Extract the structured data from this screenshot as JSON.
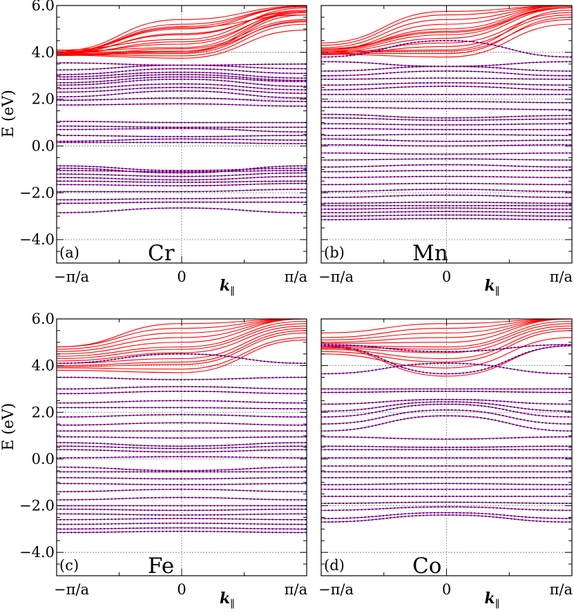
{
  "figure": {
    "ylabel": "E (eV)",
    "xlabel_symbol": "k",
    "xlabel_subscript": "∥",
    "xtick_labels": [
      "−π/a",
      "0",
      "π/a"
    ],
    "ytick_labels": [
      "6.0",
      "4.0",
      "2.0",
      "0.0",
      "−2.0",
      "−4.0"
    ]
  },
  "colors": {
    "band_line": "#ff0000",
    "band_dots": "#0000ff",
    "grid": "#777777",
    "axes": "#000000"
  },
  "chart_data": [
    {
      "type": "line",
      "panel": "(a)",
      "element": "Cr",
      "xlim": [
        -1,
        1
      ],
      "ylim": [
        -5.0,
        6.0
      ],
      "x_unit": "π/a",
      "grid": "dashed at E = -4, -2, 0, 2, 4 and at k = 0",
      "series": [
        {
          "name": "red",
          "style": "line",
          "bands": [
            [
              4.0,
              5.0,
              5.95
            ],
            [
              4.0,
              5.1,
              5.95
            ],
            [
              4.0,
              5.2,
              5.95
            ],
            [
              4.05,
              5.4,
              5.98
            ],
            [
              4.0,
              5.05,
              5.6
            ],
            [
              3.95,
              4.45,
              5.7
            ],
            [
              3.95,
              4.8,
              5.75
            ],
            [
              4.0,
              4.75,
              5.8
            ],
            [
              4.1,
              4.55,
              5.9
            ],
            [
              4.0,
              4.35,
              5.75
            ],
            [
              4.05,
              4.2,
              5.7
            ],
            [
              4.0,
              4.05,
              5.7
            ],
            [
              3.95,
              4.0,
              5.6
            ],
            [
              3.92,
              3.95,
              5.35
            ],
            [
              3.9,
              3.85,
              5.2
            ],
            [
              3.88,
              3.75,
              4.95
            ],
            [
              3.87,
              4.15,
              5.4
            ],
            [
              3.86,
              4.05,
              5.3
            ]
          ]
        },
        {
          "name": "blue",
          "style": "dotted",
          "bands": [
            [
              3.55,
              3.45,
              3.5
            ],
            [
              3.25,
              3.45,
              3.3
            ],
            [
              3.05,
              3.3,
              3.1
            ],
            [
              2.95,
              3.15,
              2.9
            ],
            [
              2.85,
              3.05,
              2.8
            ],
            [
              2.7,
              2.95,
              2.75
            ],
            [
              2.6,
              2.85,
              2.55
            ],
            [
              2.45,
              2.65,
              2.4
            ],
            [
              2.3,
              2.5,
              2.25
            ],
            [
              2.1,
              2.35,
              2.05
            ],
            [
              1.95,
              2.05,
              1.9
            ],
            [
              1.75,
              1.8,
              1.7
            ],
            [
              1.05,
              1.0,
              1.0
            ],
            [
              0.85,
              0.8,
              0.8
            ],
            [
              0.7,
              0.75,
              0.6
            ],
            [
              0.45,
              0.4,
              0.45
            ],
            [
              0.2,
              0.3,
              0.25
            ],
            [
              0.15,
              0.15,
              0.1
            ],
            [
              -0.85,
              -1.05,
              -0.95
            ],
            [
              -0.95,
              -1.15,
              -0.85
            ],
            [
              -1.05,
              -1.1,
              -1.05
            ],
            [
              -1.2,
              -1.3,
              -1.15
            ],
            [
              -1.35,
              -1.45,
              -1.3
            ],
            [
              -1.5,
              -1.55,
              -1.5
            ],
            [
              -1.65,
              -1.7,
              -1.6
            ],
            [
              -1.95,
              -1.95,
              -1.85
            ],
            [
              -2.3,
              -2.25,
              -2.2
            ],
            [
              -2.45,
              -2.4,
              -2.4
            ],
            [
              -2.85,
              -2.65,
              -2.85
            ]
          ]
        }
      ]
    },
    {
      "type": "line",
      "panel": "(b)",
      "element": "Mn",
      "xlim": [
        -1,
        1
      ],
      "ylim": [
        -5.0,
        6.0
      ],
      "x_unit": "π/a",
      "grid": "dashed at E = -4, -2, 0, 2, 4 and at k = 0",
      "series": [
        {
          "name": "red",
          "style": "line",
          "bands": [
            [
              4.1,
              5.0,
              6.0
            ],
            [
              4.1,
              5.2,
              6.0
            ],
            [
              4.2,
              5.4,
              6.0
            ],
            [
              4.3,
              5.6,
              6.0
            ],
            [
              4.4,
              5.75,
              6.0
            ],
            [
              4.0,
              4.6,
              5.9
            ],
            [
              4.05,
              4.75,
              5.95
            ],
            [
              4.1,
              4.85,
              5.9
            ],
            [
              4.15,
              4.9,
              5.95
            ],
            [
              3.95,
              4.4,
              5.7
            ],
            [
              3.9,
              4.25,
              5.6
            ],
            [
              4.05,
              4.1,
              5.8
            ],
            [
              3.95,
              3.95,
              5.5
            ],
            [
              3.92,
              3.8,
              5.2
            ],
            [
              4.0,
              4.05,
              5.4
            ]
          ]
        },
        {
          "name": "blue",
          "style": "dotted",
          "bands": [
            [
              3.8,
              4.5,
              3.8
            ],
            [
              3.6,
              3.4,
              3.6
            ],
            [
              3.2,
              3.4,
              3.2
            ],
            [
              3.0,
              3.2,
              3.0
            ],
            [
              2.85,
              2.9,
              2.85
            ],
            [
              2.6,
              2.7,
              2.6
            ],
            [
              2.4,
              2.55,
              2.4
            ],
            [
              2.2,
              2.2,
              2.2
            ],
            [
              1.9,
              1.9,
              1.85
            ],
            [
              1.65,
              1.6,
              1.55
            ],
            [
              1.35,
              1.2,
              1.3
            ],
            [
              1.2,
              1.1,
              1.15
            ],
            [
              0.95,
              0.9,
              0.95
            ],
            [
              0.75,
              0.7,
              0.7
            ],
            [
              0.45,
              0.5,
              0.45
            ],
            [
              0.3,
              0.2,
              0.25
            ],
            [
              0.05,
              0.0,
              0.05
            ],
            [
              -0.3,
              -0.35,
              -0.3
            ],
            [
              -0.6,
              -0.55,
              -0.6
            ],
            [
              -0.9,
              -0.8,
              -0.9
            ],
            [
              -1.1,
              -1.05,
              -1.05
            ],
            [
              -1.35,
              -1.3,
              -1.35
            ],
            [
              -1.65,
              -1.6,
              -1.65
            ],
            [
              -1.95,
              -1.85,
              -1.95
            ],
            [
              -2.2,
              -2.1,
              -2.2
            ],
            [
              -2.45,
              -2.4,
              -2.45
            ],
            [
              -2.55,
              -2.55,
              -2.55
            ],
            [
              -2.7,
              -2.65,
              -2.7
            ],
            [
              -2.85,
              -2.8,
              -2.85
            ],
            [
              -3.0,
              -2.95,
              -3.0
            ],
            [
              -3.15,
              -3.1,
              -3.15
            ]
          ]
        }
      ]
    },
    {
      "type": "line",
      "panel": "(c)",
      "element": "Fe",
      "xlim": [
        -1,
        1
      ],
      "ylim": [
        -5.0,
        6.0
      ],
      "x_unit": "π/a",
      "grid": "dashed at E = -4, -2, 0, 2, 4 and at k = 0",
      "series": [
        {
          "name": "red",
          "style": "line",
          "bands": [
            [
              4.5,
              5.0,
              6.0
            ],
            [
              4.6,
              5.2,
              6.0
            ],
            [
              4.7,
              5.4,
              6.0
            ],
            [
              4.8,
              5.6,
              6.0
            ],
            [
              4.8,
              5.8,
              6.0
            ],
            [
              4.4,
              4.8,
              5.9
            ],
            [
              4.3,
              4.7,
              5.8
            ],
            [
              4.2,
              4.55,
              5.7
            ],
            [
              4.1,
              4.3,
              5.6
            ],
            [
              4.0,
              4.15,
              5.5
            ],
            [
              3.9,
              3.85,
              5.2
            ],
            [
              3.8,
              3.7,
              5.1
            ],
            [
              3.95,
              4.05,
              5.4
            ]
          ]
        },
        {
          "name": "blue",
          "style": "dotted",
          "bands": [
            [
              4.1,
              4.5,
              4.1
            ],
            [
              3.5,
              3.4,
              3.5
            ],
            [
              3.0,
              3.1,
              3.0
            ],
            [
              2.8,
              2.9,
              2.8
            ],
            [
              2.4,
              2.5,
              2.4
            ],
            [
              2.2,
              2.2,
              2.15
            ],
            [
              1.8,
              1.9,
              1.8
            ],
            [
              1.45,
              1.55,
              1.45
            ],
            [
              1.2,
              1.2,
              1.2
            ],
            [
              0.95,
              0.9,
              0.95
            ],
            [
              0.7,
              0.55,
              0.7
            ],
            [
              0.55,
              0.45,
              0.55
            ],
            [
              0.4,
              0.3,
              0.4
            ],
            [
              0.05,
              0.1,
              0.05
            ],
            [
              -0.35,
              -0.5,
              -0.35
            ],
            [
              -0.55,
              -0.55,
              -0.55
            ],
            [
              -0.8,
              -0.85,
              -0.8
            ],
            [
              -1.05,
              -1.1,
              -1.05
            ],
            [
              -1.4,
              -1.3,
              -1.4
            ],
            [
              -1.75,
              -1.65,
              -1.75
            ],
            [
              -2.0,
              -2.0,
              -2.0
            ],
            [
              -2.15,
              -2.2,
              -2.15
            ],
            [
              -2.35,
              -2.4,
              -2.35
            ],
            [
              -2.6,
              -2.55,
              -2.6
            ],
            [
              -2.8,
              -2.75,
              -2.8
            ],
            [
              -3.0,
              -2.95,
              -3.0
            ],
            [
              -3.15,
              -3.1,
              -3.15
            ]
          ]
        }
      ]
    },
    {
      "type": "line",
      "panel": "(d)",
      "element": "Co",
      "xlim": [
        -1,
        1
      ],
      "ylim": [
        -5.0,
        6.0
      ],
      "x_unit": "π/a",
      "grid": "dashed at E = -4, -2, 0, 2, 4 and at k = 0",
      "series": [
        {
          "name": "red",
          "style": "line",
          "bands": [
            [
              4.95,
              5.0,
              6.0
            ],
            [
              5.0,
              5.2,
              6.0
            ],
            [
              5.1,
              5.4,
              6.0
            ],
            [
              5.2,
              5.6,
              6.0
            ],
            [
              5.4,
              5.8,
              6.0
            ],
            [
              4.85,
              4.8,
              5.9
            ],
            [
              4.8,
              4.7,
              5.8
            ],
            [
              4.75,
              4.55,
              5.7
            ],
            [
              4.7,
              4.3,
              5.6
            ],
            [
              4.6,
              4.15,
              5.5
            ],
            [
              4.5,
              3.9,
              5.2
            ],
            [
              4.8,
              3.55,
              4.85
            ]
          ]
        },
        {
          "name": "blue",
          "style": "dotted",
          "bands": [
            [
              4.85,
              3.65,
              4.85
            ],
            [
              4.9,
              4.6,
              4.9
            ],
            [
              3.65,
              4.1,
              3.65
            ],
            [
              3.0,
              3.0,
              3.0
            ],
            [
              2.85,
              2.9,
              2.85
            ],
            [
              2.35,
              2.55,
              2.35
            ],
            [
              2.05,
              2.45,
              2.05
            ],
            [
              1.8,
              2.35,
              1.8
            ],
            [
              1.5,
              2.1,
              1.5
            ],
            [
              1.2,
              1.85,
              1.2
            ],
            [
              0.95,
              0.85,
              0.95
            ],
            [
              0.55,
              0.5,
              0.55
            ],
            [
              0.4,
              0.4,
              0.4
            ],
            [
              0.05,
              0.05,
              0.05
            ],
            [
              -0.3,
              -0.3,
              -0.3
            ],
            [
              -0.55,
              -0.55,
              -0.55
            ],
            [
              -0.8,
              -0.8,
              -0.8
            ],
            [
              -1.1,
              -1.05,
              -1.1
            ],
            [
              -1.3,
              -1.3,
              -1.3
            ],
            [
              -1.6,
              -1.6,
              -1.6
            ],
            [
              -1.9,
              -1.85,
              -1.9
            ],
            [
              -2.2,
              -2.05,
              -2.2
            ],
            [
              -2.55,
              -2.3,
              -2.55
            ],
            [
              -2.7,
              -2.4,
              -2.7
            ]
          ]
        }
      ]
    }
  ]
}
